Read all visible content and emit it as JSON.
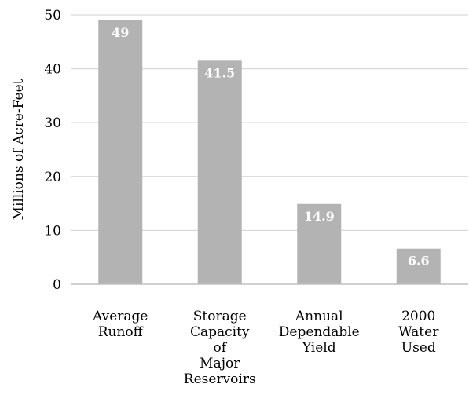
{
  "chart_data": {
    "type": "bar",
    "title": "",
    "xlabel": "",
    "ylabel": "Millions of Acre-Feet",
    "ylim": [
      0,
      50
    ],
    "yticks": [
      0,
      10,
      20,
      30,
      40,
      50
    ],
    "grid": true,
    "legend": "none",
    "categories": [
      [
        "Average",
        "Runoff"
      ],
      [
        "Storage",
        "Capacity",
        "of",
        "Major",
        "Reservoirs"
      ],
      [
        "Annual",
        "Dependable",
        "Yield"
      ],
      [
        "2000",
        "Water",
        "Used"
      ]
    ],
    "values": [
      49,
      41.5,
      14.9,
      6.6
    ],
    "value_labels": [
      "49",
      "41.5",
      "14.9",
      "6.6"
    ],
    "colors": {
      "bar": "#b3b3b3",
      "grid": "#d9d9d9",
      "axis": "#bfbfbf",
      "label": "#ffffff"
    }
  }
}
